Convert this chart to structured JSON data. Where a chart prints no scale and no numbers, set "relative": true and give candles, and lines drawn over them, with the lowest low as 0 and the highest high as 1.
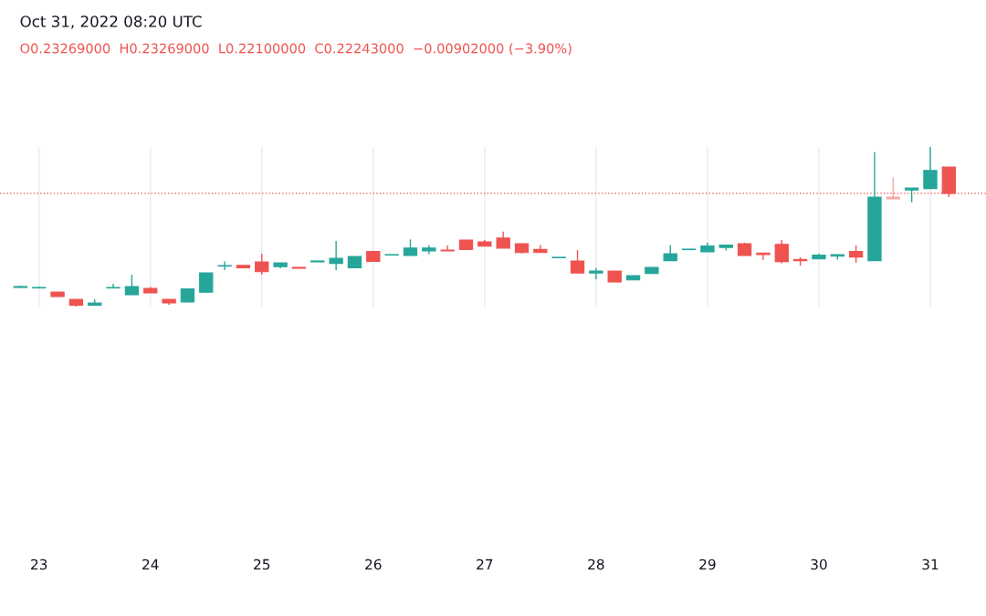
{
  "chart_data": {
    "type": "candlestick",
    "relative": true,
    "title": "Oct 31, 2022 08:20 UTC",
    "annotations": [
      "O0.23269000  H0.23269000  L0.22100000  C0.22243000  −0.00902000 (−3.90%)"
    ],
    "categories": [
      null,
      "23",
      null,
      null,
      null,
      null,
      null,
      "24",
      null,
      null,
      null,
      null,
      null,
      "25",
      null,
      null,
      null,
      null,
      null,
      "26",
      null,
      null,
      null,
      null,
      null,
      "27",
      null,
      null,
      null,
      null,
      null,
      "28",
      null,
      null,
      null,
      null,
      null,
      "29",
      null,
      null,
      null,
      null,
      null,
      "30",
      null,
      null,
      null,
      null,
      null,
      "31",
      null
    ],
    "ohlc": [
      [
        0.12,
        0.131,
        0.12,
        0.126
      ],
      [
        0.117,
        0.126,
        0.114,
        0.12
      ],
      [
        0.091,
        0.091,
        0.063,
        0.063
      ],
      [
        0.046,
        0.046,
        0,
        0.009
      ],
      [
        0.009,
        0.046,
        0.009,
        0.023
      ],
      [
        0.117,
        0.143,
        0.117,
        0.12
      ],
      [
        0.074,
        0.2,
        0.074,
        0.126
      ],
      [
        0.114,
        0.123,
        0.086,
        0.086
      ],
      [
        0.046,
        0.046,
        0.011,
        0.023
      ],
      [
        0.029,
        0.114,
        0.029,
        0.111
      ],
      [
        0.091,
        0.211,
        0.086,
        0.211
      ],
      [
        0.254,
        0.283,
        0.229,
        0.257
      ],
      [
        0.259,
        0.259,
        0.243,
        0.243
      ],
      [
        0.28,
        0.331,
        0.2,
        0.219
      ],
      [
        0.251,
        0.274,
        0.24,
        0.274
      ],
      [
        0.246,
        0.246,
        0.24,
        0.24
      ],
      [
        0.28,
        0.286,
        0.28,
        0.286
      ],
      [
        0.271,
        0.411,
        0.229,
        0.303
      ],
      [
        0.243,
        0.314,
        0.243,
        0.314
      ],
      [
        0.346,
        0.346,
        0.283,
        0.283
      ],
      [
        0.323,
        0.326,
        0.32,
        0.326
      ],
      [
        0.32,
        0.421,
        0.32,
        0.367
      ],
      [
        0.349,
        0.385,
        0.328,
        0.367
      ],
      [
        0.354,
        0.383,
        0.349,
        0.349
      ],
      [
        0.417,
        0.417,
        0.358,
        0.358
      ],
      [
        0.406,
        0.417,
        0.379,
        0.379
      ],
      [
        0.429,
        0.47,
        0.366,
        0.366
      ],
      [
        0.394,
        0.394,
        0.333,
        0.339
      ],
      [
        0.358,
        0.386,
        0.339,
        0.339
      ],
      [
        0.306,
        0.309,
        0.306,
        0.309
      ],
      [
        0.286,
        0.354,
        0.211,
        0.211
      ],
      [
        0.211,
        0.242,
        0.171,
        0.223
      ],
      [
        0.223,
        0.223,
        0.154,
        0.154
      ],
      [
        0.167,
        0.194,
        0.167,
        0.194
      ],
      [
        0.208,
        0.246,
        0.208,
        0.246
      ],
      [
        0.288,
        0.386,
        0.288,
        0.331
      ],
      [
        0.357,
        0.36,
        0.357,
        0.36
      ],
      [
        0.343,
        0.4,
        0.343,
        0.379
      ],
      [
        0.371,
        0.386,
        0.352,
        0.386
      ],
      [
        0.394,
        0.4,
        0.32,
        0.32
      ],
      [
        0.335,
        0.335,
        0.293,
        0.326
      ],
      [
        0.39,
        0.417,
        0.271,
        0.282
      ],
      [
        0.295,
        0.309,
        0.257,
        0.288
      ],
      [
        0.299,
        0.331,
        0.299,
        0.322
      ],
      [
        0.316,
        0.326,
        0.295,
        0.326
      ],
      [
        0.345,
        0.383,
        0.275,
        0.311
      ],
      [
        0.288,
        0.967,
        0.288,
        0.686
      ],
      [
        0.686,
        0.809,
        0.671,
        0.674
      ],
      [
        0.731,
        0.743,
        0.654,
        0.743
      ],
      [
        0.739,
        1,
        0.739,
        0.853
      ],
      [
        0.874,
        0.874,
        0.686,
        0.709
      ]
    ],
    "colors": [
      "#26a69a",
      "#26a69a",
      "#ef5350",
      "#ef5350",
      "#26a69a",
      "#26a69a",
      "#26a69a",
      "#ef5350",
      "#ef5350",
      "#26a69a",
      "#26a69a",
      "#26a69a",
      "#ef5350",
      "#ef5350",
      "#26a69a",
      "#ef5350",
      "#26a69a",
      "#26a69a",
      "#26a69a",
      "#ef5350",
      "#26a69a",
      "#26a69a",
      "#26a69a",
      "#ef5350",
      "#ef5350",
      "#ef5350",
      "#ef5350",
      "#ef5350",
      "#ef5350",
      "#26a69a",
      "#ef5350",
      "#26a69a",
      "#ef5350",
      "#26a69a",
      "#26a69a",
      "#26a69a",
      "#26a69a",
      "#26a69a",
      "#26a69a",
      "#ef5350",
      "#ef5350",
      "#ef5350",
      "#ef5350",
      "#26a69a",
      "#26a69a",
      "#ef5350",
      "#26a69a",
      "#f7a9a7",
      "#26a69a",
      "#26a69a",
      "#ef5350"
    ],
    "ref_lines": [
      {
        "axis": "y",
        "value": 0.709,
        "color": "#ef5350",
        "line_style": "dotted"
      }
    ],
    "grid": "x"
  }
}
